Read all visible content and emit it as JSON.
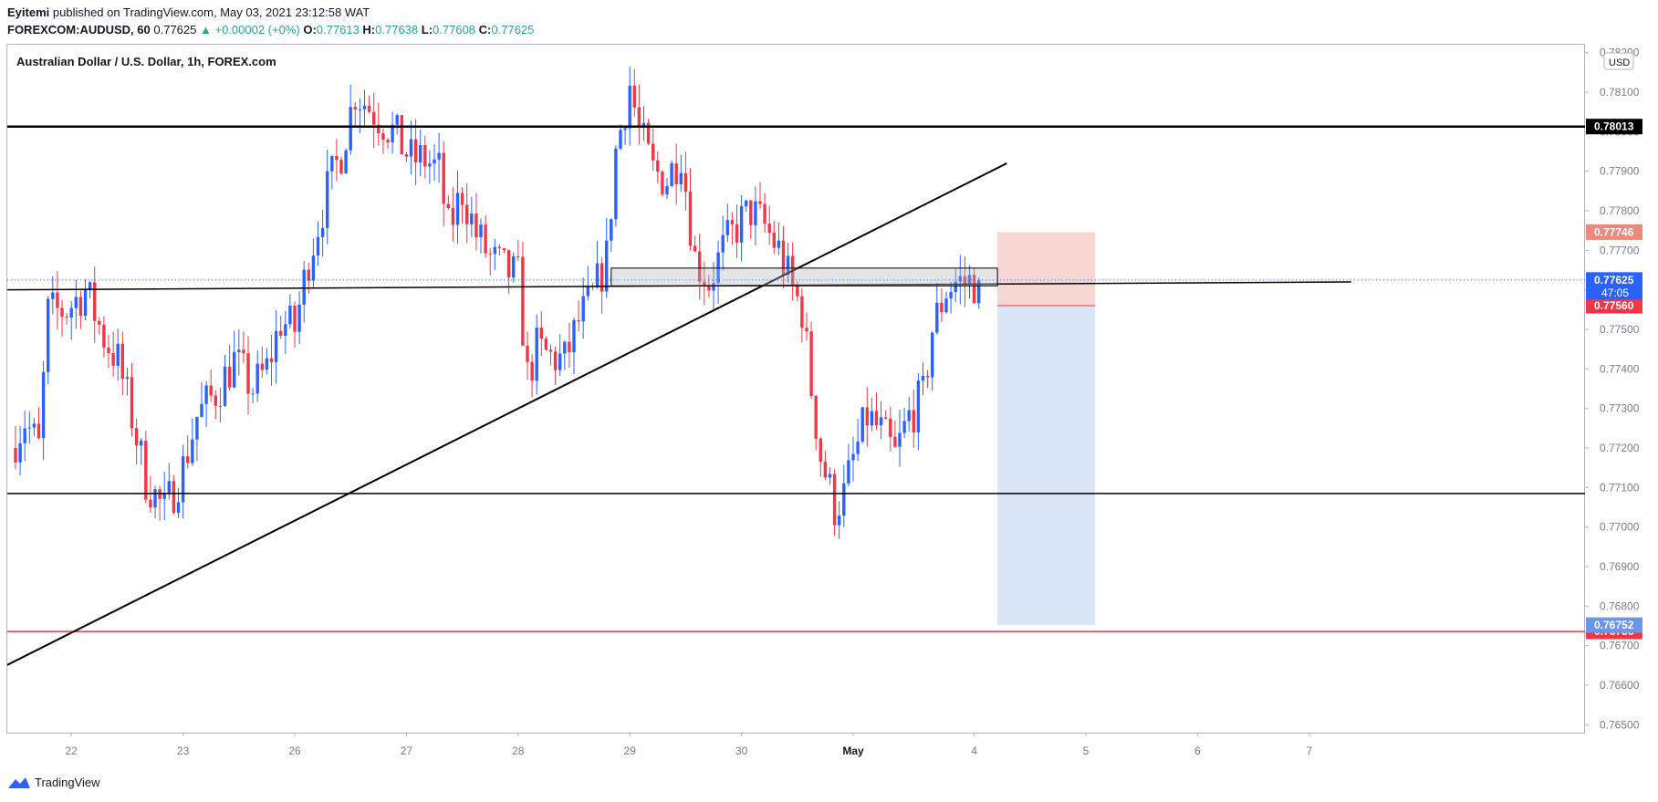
{
  "header": {
    "author": "Eyitemi",
    "published": "published on TradingView.com, May 03, 2021 23:12:58 WAT",
    "symbol": "FOREXCOM:AUDUSD, 60",
    "last": "0.77625",
    "change": "▲ +0.00002 (+0%)",
    "o_label": "O:",
    "o_val": "0.77613",
    "h_label": "H:",
    "h_val": "0.77638",
    "l_label": "L:",
    "l_val": "0.77608",
    "c_label": "C:",
    "c_val": "0.77625"
  },
  "legend_title": "Australian Dollar / U.S. Dollar, 1h, FOREX.com",
  "footer": {
    "brand": "TradingView"
  },
  "currency": "USD",
  "colors": {
    "up": "#2962ff",
    "down": "#f23645",
    "stop_zone": "#f8d7d2",
    "target_zone": "#d9e6f7",
    "axis_text": "#787b86"
  },
  "chart_data": {
    "type": "candlestick",
    "title": "Australian Dollar / U.S. Dollar, 1h, FOREX.com",
    "ylim": [
      0.7648,
      0.7822
    ],
    "y_ticks": [
      "0.76500",
      "0.76600",
      "0.76700",
      "0.76800",
      "0.76900",
      "0.77000",
      "0.77100",
      "0.77200",
      "0.77300",
      "0.77400",
      "0.77500",
      "0.77600",
      "0.77700",
      "0.77800",
      "0.77900",
      "0.78000",
      "0.78100",
      "0.78200"
    ],
    "x_ticks": [
      {
        "label": "22",
        "bar": 12
      },
      {
        "label": "23",
        "bar": 36
      },
      {
        "label": "26",
        "bar": 60
      },
      {
        "label": "27",
        "bar": 84
      },
      {
        "label": "28",
        "bar": 108
      },
      {
        "label": "29",
        "bar": 132
      },
      {
        "label": "30",
        "bar": 156
      },
      {
        "label": "May",
        "bar": 180
      },
      {
        "label": "4",
        "bar": 206
      },
      {
        "label": "5",
        "bar": 230
      },
      {
        "label": "6",
        "bar": 254
      },
      {
        "label": "7",
        "bar": 278
      }
    ],
    "anchors": [
      [
        0,
        0.772
      ],
      [
        3,
        0.7727
      ],
      [
        6,
        0.772
      ],
      [
        8,
        0.7754
      ],
      [
        12,
        0.7755
      ],
      [
        16,
        0.776
      ],
      [
        20,
        0.7748
      ],
      [
        23,
        0.7742
      ],
      [
        26,
        0.7728
      ],
      [
        29,
        0.7712
      ],
      [
        33,
        0.7704
      ],
      [
        37,
        0.7715
      ],
      [
        40,
        0.7728
      ],
      [
        44,
        0.7734
      ],
      [
        48,
        0.7742
      ],
      [
        52,
        0.7735
      ],
      [
        55,
        0.774
      ],
      [
        58,
        0.7752
      ],
      [
        61,
        0.775
      ],
      [
        64,
        0.7768
      ],
      [
        68,
        0.7785
      ],
      [
        71,
        0.7795
      ],
      [
        74,
        0.781
      ],
      [
        78,
        0.7805
      ],
      [
        82,
        0.78
      ],
      [
        86,
        0.7793
      ],
      [
        89,
        0.7793
      ],
      [
        92,
        0.779
      ],
      [
        94,
        0.7775
      ],
      [
        97,
        0.7785
      ],
      [
        100,
        0.7774
      ],
      [
        103,
        0.7768
      ],
      [
        106,
        0.7765
      ],
      [
        109,
        0.7763
      ],
      [
        111,
        0.7738
      ],
      [
        113,
        0.7745
      ],
      [
        116,
        0.7743
      ],
      [
        119,
        0.7742
      ],
      [
        122,
        0.7752
      ],
      [
        125,
        0.7758
      ],
      [
        128,
        0.7768
      ],
      [
        130,
        0.7795
      ],
      [
        133,
        0.7812
      ],
      [
        135,
        0.78
      ],
      [
        138,
        0.779
      ],
      [
        141,
        0.7788
      ],
      [
        144,
        0.7795
      ],
      [
        147,
        0.7768
      ],
      [
        150,
        0.7762
      ],
      [
        153,
        0.777
      ],
      [
        156,
        0.7776
      ],
      [
        159,
        0.778
      ],
      [
        162,
        0.7776
      ],
      [
        165,
        0.777
      ],
      [
        168,
        0.776
      ],
      [
        170,
        0.7755
      ],
      [
        172,
        0.7735
      ],
      [
        174,
        0.7718
      ],
      [
        177,
        0.7705
      ],
      [
        179,
        0.7708
      ],
      [
        181,
        0.7717
      ],
      [
        184,
        0.7728
      ],
      [
        187,
        0.7724
      ],
      [
        190,
        0.7718
      ],
      [
        193,
        0.7728
      ],
      [
        196,
        0.7733
      ],
      [
        198,
        0.775
      ],
      [
        201,
        0.776
      ],
      [
        203,
        0.7762
      ]
    ],
    "last_bar": 207,
    "last_price": 0.77625,
    "levels": [
      {
        "name": "resistance",
        "value": 0.78013,
        "label": "0.78013"
      },
      {
        "name": "support",
        "value": 0.77085
      },
      {
        "name": "target",
        "value": 0.76736,
        "label": "0.76736"
      }
    ],
    "neckline": {
      "from": [
        -2,
        0.776
      ],
      "to": [
        287,
        0.7762
      ]
    },
    "trendline": {
      "from": [
        -2,
        0.7665
      ],
      "to": [
        213,
        0.7792
      ]
    },
    "rect_zone": {
      "from_bar": 128,
      "to_bar": 211,
      "top": 0.77655,
      "bottom": 0.7761
    },
    "short_position": {
      "start_bar": 211,
      "end_bar": 232,
      "entry": 0.7756,
      "stop": 0.77746,
      "target": 0.76752,
      "entry_label": "0.77560",
      "stop_label": "0.77746",
      "target_label": "0.76752"
    },
    "price_label": {
      "value": "0.77625",
      "countdown": "47:05"
    }
  }
}
